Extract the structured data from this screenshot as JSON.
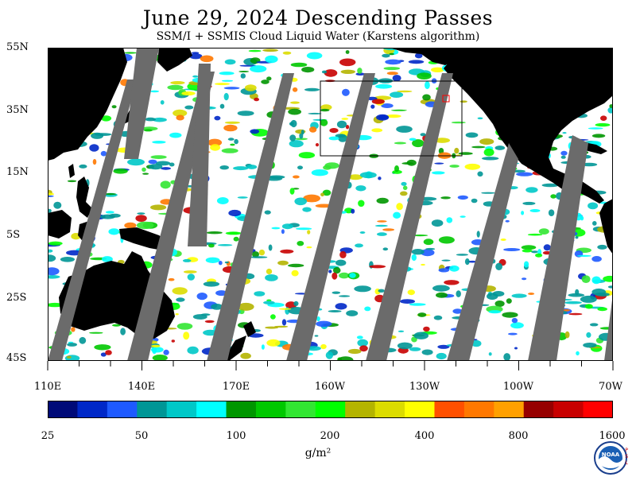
{
  "header": {
    "title": "June 29, 2024  Descending Passes",
    "subtitle": "SSM/I + SSMIS Cloud Liquid Water (Karstens algorithm)"
  },
  "map": {
    "lat_labels": [
      "55N",
      "35N",
      "15N",
      "5S",
      "25S",
      "45S"
    ],
    "lon_labels": [
      "110E",
      "140E",
      "170E",
      "160W",
      "130W",
      "100W",
      "70W"
    ],
    "colors": {
      "land": "#000000",
      "no_data_swath_gap": "#6b6b6b",
      "clear_ocean": "#ffffff",
      "region_box": "#000000",
      "highlight_box": "#ff0000"
    }
  },
  "colorbar": {
    "colors": [
      "#000a78",
      "#0028c8",
      "#1e5aff",
      "#009696",
      "#00c8c8",
      "#00ffff",
      "#009600",
      "#00c800",
      "#32e632",
      "#00ff00",
      "#b4b400",
      "#dcdc00",
      "#ffff00",
      "#ff5000",
      "#ff7800",
      "#ffa000",
      "#960000",
      "#c80000",
      "#ff0000"
    ],
    "labels": [
      "25",
      "50",
      "100",
      "200",
      "400",
      "800",
      "1600"
    ],
    "units": "g/m²"
  },
  "logo": {
    "name": "noaa-logo",
    "text": "NOAA"
  }
}
